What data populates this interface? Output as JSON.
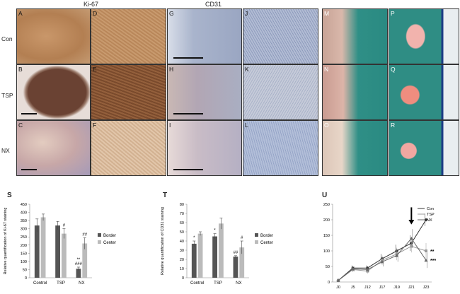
{
  "figure": {
    "headers": {
      "ki67": "Ki-67",
      "cd31": "CD31"
    },
    "rows": [
      "Con",
      "TSP",
      "NX"
    ],
    "panels": [
      "A",
      "D",
      "G",
      "J",
      "M",
      "P",
      "B",
      "E",
      "H",
      "K",
      "N",
      "Q",
      "C",
      "F",
      "I",
      "L",
      "O",
      "R"
    ]
  },
  "chart_data": [
    {
      "panel": "S",
      "type": "bar",
      "ylabel": "Relative quantification of Ki-67 staining",
      "categories": [
        "Control",
        "TSP",
        "NX"
      ],
      "ylim": [
        0,
        450
      ],
      "yticks": [
        0,
        50,
        100,
        150,
        200,
        250,
        300,
        350,
        400,
        450
      ],
      "series": [
        {
          "name": "Border",
          "values": [
            320,
            320,
            55
          ],
          "errors": [
            40,
            25,
            10
          ],
          "color": "#555555"
        },
        {
          "name": "Center",
          "values": [
            370,
            270,
            210
          ],
          "errors": [
            20,
            30,
            35
          ],
          "color": "#bbbbbb"
        }
      ],
      "annotations": [
        {
          "text": "#",
          "category": "TSP",
          "series": "Center"
        },
        {
          "text": "**",
          "category": "NX",
          "series": "Border",
          "line": 0
        },
        {
          "text": "###",
          "category": "NX",
          "series": "Border",
          "line": 1
        },
        {
          "text": "##",
          "category": "NX",
          "series": "Center"
        }
      ],
      "legend_position": "right"
    },
    {
      "panel": "T",
      "type": "bar",
      "ylabel": "Relative quantification of CD31 staining",
      "categories": [
        "Control",
        "TSP",
        "NX"
      ],
      "ylim": [
        0,
        80
      ],
      "yticks": [
        0,
        10,
        20,
        30,
        40,
        50,
        60,
        70,
        80
      ],
      "series": [
        {
          "name": "Border",
          "values": [
            37,
            45,
            23
          ],
          "errors": [
            3,
            3,
            1
          ],
          "color": "#555555"
        },
        {
          "name": "Center",
          "values": [
            48,
            59,
            33
          ],
          "errors": [
            2,
            6,
            7
          ],
          "color": "#bbbbbb"
        }
      ],
      "annotations": [
        {
          "text": "*",
          "category": "Control",
          "series": "Border"
        },
        {
          "text": "*",
          "category": "TSP",
          "series": "Border"
        },
        {
          "text": "##",
          "category": "NX",
          "series": "Border"
        },
        {
          "text": "#",
          "category": "NX",
          "series": "Center"
        }
      ],
      "legend_position": "right"
    },
    {
      "panel": "U",
      "type": "line",
      "x": [
        "J0",
        "J5",
        "J12",
        "J17",
        "J19",
        "J21",
        "J23"
      ],
      "ylim": [
        0,
        250
      ],
      "yticks": [
        0,
        50,
        100,
        150,
        200,
        250
      ],
      "series": [
        {
          "name": "Con",
          "values": [
            5,
            45,
            45,
            75,
            100,
            125,
            200
          ],
          "errors": [
            2,
            8,
            8,
            15,
            20,
            25,
            20
          ],
          "color": "#333333",
          "marker": "diamond"
        },
        {
          "name": "TSP",
          "values": [
            5,
            40,
            35,
            70,
            90,
            115,
            100
          ],
          "errors": [
            2,
            8,
            8,
            15,
            20,
            20,
            25
          ],
          "color": "#999999",
          "marker": "square"
        },
        {
          "name": "NX",
          "values": [
            5,
            42,
            40,
            65,
            85,
            140,
            70
          ],
          "errors": [
            2,
            8,
            8,
            15,
            20,
            30,
            25
          ],
          "color": "#666666",
          "marker": "triangle"
        }
      ],
      "annotations": [
        {
          "text": "**",
          "x": "J23",
          "series": "TSP"
        },
        {
          "text": "***",
          "x": "J23",
          "series": "NX"
        }
      ],
      "arrow_at": "J21",
      "legend_position": "top-right"
    }
  ]
}
